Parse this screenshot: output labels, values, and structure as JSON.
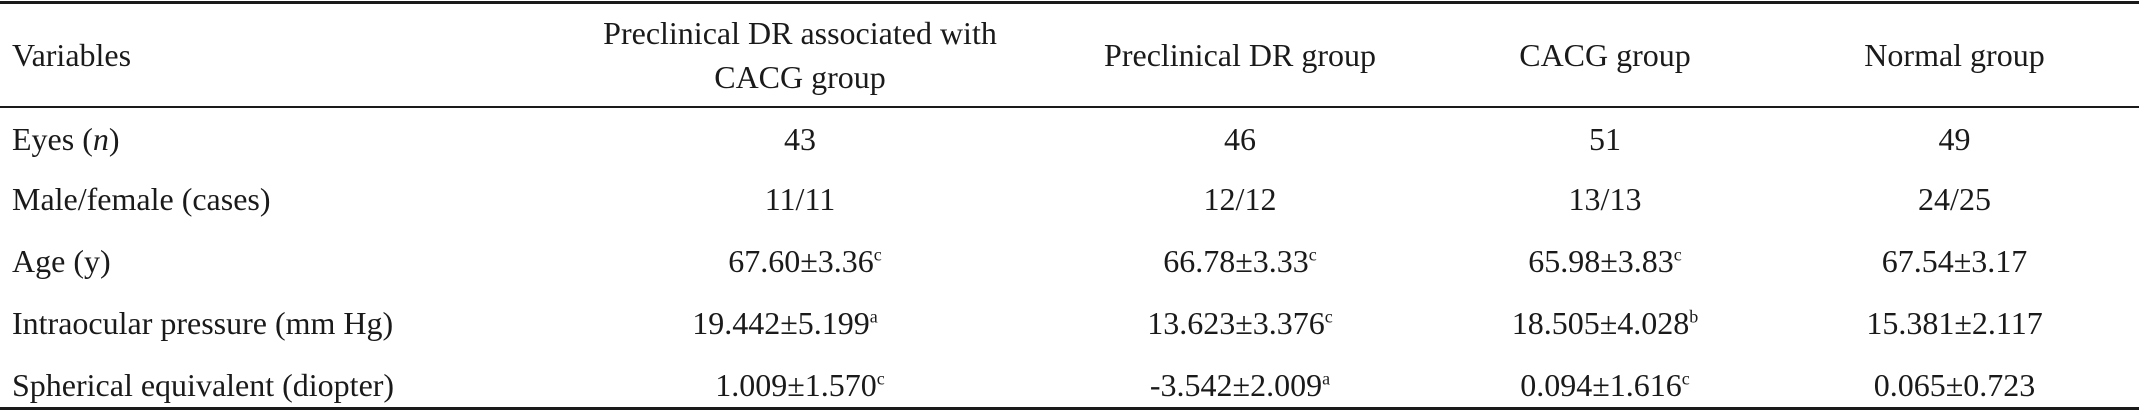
{
  "table": {
    "headers": [
      "Variables",
      "Preclinical DR associated with CACG group",
      "Preclinical DR group",
      "CACG group",
      "Normal group"
    ],
    "rows": [
      {
        "label_prefix": "Eyes (",
        "label_italic": "n",
        "label_suffix": ")",
        "cells": [
          {
            "value": "43",
            "sup": ""
          },
          {
            "value": "46",
            "sup": ""
          },
          {
            "value": "51",
            "sup": ""
          },
          {
            "value": "49",
            "sup": ""
          }
        ]
      },
      {
        "label": "Male/female (cases)",
        "cells": [
          {
            "value": "11/11",
            "sup": ""
          },
          {
            "value": "12/12",
            "sup": ""
          },
          {
            "value": "13/13",
            "sup": ""
          },
          {
            "value": "24/25",
            "sup": ""
          }
        ]
      },
      {
        "label": "Age (y)",
        "cells": [
          {
            "value": "67.60±3.36",
            "sup": "c"
          },
          {
            "value": "66.78±3.33",
            "sup": "c"
          },
          {
            "value": "65.98±3.83",
            "sup": "c"
          },
          {
            "value": "67.54±3.17",
            "sup": ""
          }
        ]
      },
      {
        "label": "Intraocular pressure (mm Hg)",
        "cells": [
          {
            "value": "19.442±5.199",
            "sup": "a"
          },
          {
            "value": "13.623±3.376",
            "sup": "c"
          },
          {
            "value": "18.505±4.028",
            "sup": "b"
          },
          {
            "value": "15.381±2.117",
            "sup": ""
          }
        ]
      },
      {
        "label": "Spherical equivalent (diopter)",
        "cells": [
          {
            "value": "1.009±1.570",
            "sup": "c"
          },
          {
            "value": "-3.542±2.009",
            "sup": "a"
          },
          {
            "value": "0.094±1.616",
            "sup": "c"
          },
          {
            "value": "0.065±0.723",
            "sup": ""
          }
        ]
      }
    ]
  }
}
